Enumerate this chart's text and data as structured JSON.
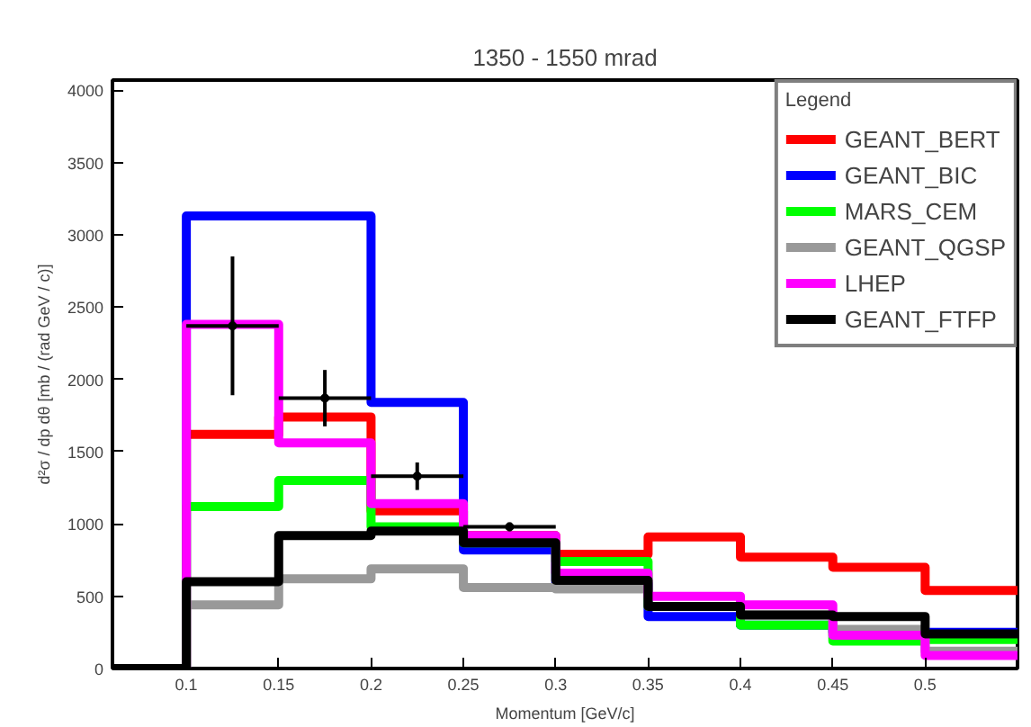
{
  "chart_data": {
    "type": "histogram",
    "title": "1350 - 1550 mrad",
    "xlabel": "Momentum [GeV/c]",
    "ylabel": "d²σ / dp dθ [mb / (rad GeV / c)]",
    "legend_title": "Legend",
    "bins": [
      0.05,
      0.1,
      0.15,
      0.2,
      0.25,
      0.3,
      0.35,
      0.4,
      0.45,
      0.5,
      0.55
    ],
    "series": [
      {
        "name": "GEANT_BERT",
        "color": "#ff0000",
        "values": [
          0,
          1620,
          1740,
          1090,
          920,
          790,
          910,
          770,
          700,
          540
        ]
      },
      {
        "name": "GEANT_BIC",
        "color": "#0000ff",
        "values": [
          0,
          3130,
          3130,
          1840,
          820,
          590,
          360,
          300,
          250,
          250
        ]
      },
      {
        "name": "MARS_CEM",
        "color": "#00ff00",
        "values": [
          0,
          1120,
          1300,
          980,
          870,
          740,
          430,
          300,
          190,
          200
        ]
      },
      {
        "name": "GEANT_QGSP",
        "color": "#999999",
        "values": [
          0,
          440,
          620,
          690,
          560,
          550,
          430,
          370,
          270,
          120
        ]
      },
      {
        "name": "LHEP",
        "color": "#ff00ff",
        "values": [
          0,
          2380,
          1560,
          1140,
          920,
          660,
          500,
          440,
          230,
          90
        ]
      },
      {
        "name": "GEANT_FTFP",
        "color": "#000000",
        "values": [
          0,
          600,
          920,
          950,
          870,
          610,
          430,
          370,
          360,
          240
        ]
      },
      {
        "type": "scatter",
        "marker": "circle",
        "color": "#000000",
        "x": [
          0.125,
          0.175,
          0.225,
          0.275
        ],
        "values": [
          2370,
          1870,
          1330,
          980
        ],
        "errors": [
          480,
          195,
          95,
          30
        ],
        "xerrors": [
          0.025,
          0.025,
          0.025,
          0.025
        ]
      }
    ],
    "xlim": [
      0.06,
      0.55
    ],
    "ylim": [
      0,
      4070
    ],
    "xticks": [
      0.1,
      0.15,
      0.2,
      0.25,
      0.3,
      0.35,
      0.4,
      0.45,
      0.5
    ],
    "yticks": [
      0,
      500,
      1000,
      1500,
      2000,
      2500,
      3000,
      3500,
      4000
    ],
    "grid": false,
    "legend": "top right"
  }
}
